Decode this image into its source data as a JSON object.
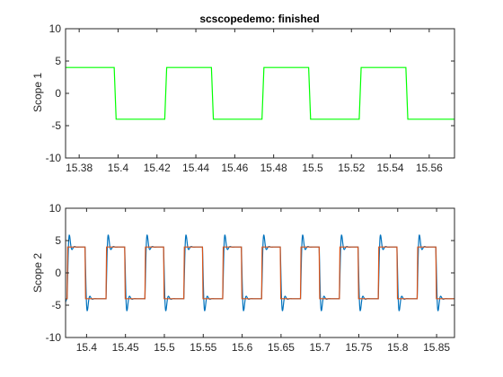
{
  "figure": {
    "title": "scscopedemo: finished"
  },
  "chart_data": [
    {
      "type": "line",
      "title": "scscopedemo: finished",
      "xlabel": "",
      "ylabel": "Scope 1",
      "xlim": [
        15.373,
        15.573
      ],
      "ylim": [
        -10,
        10
      ],
      "xticks": [
        15.38,
        15.4,
        15.42,
        15.44,
        15.46,
        15.48,
        15.5,
        15.52,
        15.54,
        15.56
      ],
      "xtick_labels": [
        "15.38",
        "15.4",
        "15.42",
        "15.44",
        "15.46",
        "15.48",
        "15.5",
        "15.52",
        "15.54",
        "15.56"
      ],
      "yticks": [
        -10,
        -5,
        0,
        5,
        10
      ],
      "ytick_labels": [
        "-10",
        "-5",
        "0",
        "5",
        "10"
      ],
      "grid": false,
      "series": [
        {
          "color": "#00ff00",
          "x": [
            15.373,
            15.398,
            15.399,
            15.424,
            15.425,
            15.448,
            15.449,
            15.474,
            15.475,
            15.498,
            15.499,
            15.524,
            15.525,
            15.548,
            15.549,
            15.573
          ],
          "y": [
            4,
            4,
            -4,
            -4,
            4,
            4,
            -4,
            -4,
            4,
            4,
            -4,
            -4,
            4,
            4,
            -4,
            -4
          ]
        }
      ]
    },
    {
      "type": "line",
      "title": "",
      "xlabel": "",
      "ylabel": "Scope 2",
      "xlim": [
        15.373,
        15.873
      ],
      "ylim": [
        -10,
        10
      ],
      "xticks": [
        15.4,
        15.45,
        15.5,
        15.55,
        15.6,
        15.65,
        15.7,
        15.75,
        15.8,
        15.85
      ],
      "xtick_labels": [
        "15.4",
        "15.45",
        "15.5",
        "15.55",
        "15.6",
        "15.65",
        "15.7",
        "15.75",
        "15.8",
        "15.85"
      ],
      "yticks": [
        -10,
        -5,
        0,
        5,
        10
      ],
      "ytick_labels": [
        "-10",
        "-5",
        "0",
        "5",
        "10"
      ],
      "grid": false,
      "square_wave": {
        "high": 4,
        "low": -4,
        "period": 0.05,
        "rise_times": [
          15.375,
          15.425,
          15.475,
          15.525,
          15.575,
          15.625,
          15.675,
          15.725,
          15.775,
          15.825
        ],
        "fall_times": [
          15.398,
          15.449,
          15.499,
          15.549,
          15.599,
          15.649,
          15.699,
          15.749,
          15.799,
          15.849
        ]
      },
      "series": [
        {
          "color": "#0072bd",
          "style": "filtered",
          "overshoot": 4.5
        },
        {
          "color": "#d95319",
          "style": "ideal"
        }
      ]
    }
  ]
}
